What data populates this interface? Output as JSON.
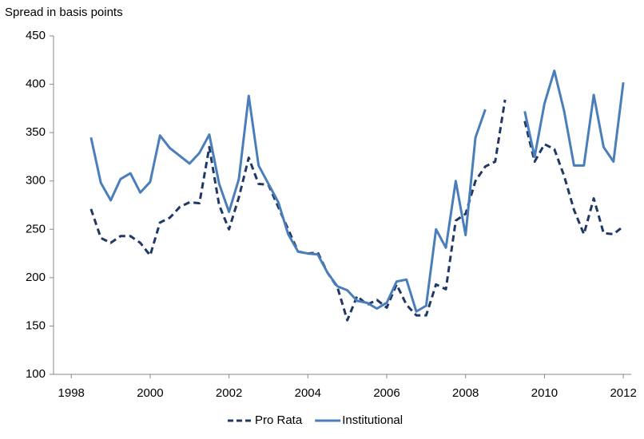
{
  "chart_data": {
    "type": "line",
    "y_axis_label": "Spread in basis points",
    "x": [
      1998.5,
      1998.75,
      1999,
      1999.25,
      1999.5,
      1999.75,
      2000,
      2000.25,
      2000.5,
      2000.75,
      2001,
      2001.25,
      2001.5,
      2001.75,
      2002,
      2002.25,
      2002.5,
      2002.75,
      2003,
      2003.25,
      2003.5,
      2003.75,
      2004,
      2004.25,
      2004.5,
      2004.75,
      2005,
      2005.25,
      2005.5,
      2005.75,
      2006,
      2006.25,
      2006.5,
      2006.75,
      2007,
      2007.25,
      2007.5,
      2007.75,
      2008,
      2008.25,
      2008.5,
      2008.75,
      2009,
      2009.25,
      2009.5,
      2009.75,
      2010,
      2010.25,
      2010.5,
      2010.75,
      2011,
      2011.25,
      2011.5,
      2011.75,
      2012
    ],
    "series": [
      {
        "name": "Pro Rata",
        "color": "#1f3864",
        "dash": true,
        "values": [
          271,
          241,
          236,
          243,
          243,
          236,
          223,
          257,
          262,
          273,
          278,
          277,
          335,
          275,
          250,
          283,
          324,
          297,
          296,
          273,
          250,
          227,
          225,
          226,
          205,
          190,
          156,
          181,
          172,
          177,
          169,
          193,
          172,
          161,
          161,
          193,
          188,
          259,
          266,
          300,
          315,
          320,
          384,
          null,
          362,
          320,
          338,
          333,
          305,
          270,
          245,
          282,
          246,
          245,
          253
        ]
      },
      {
        "name": "Institutional",
        "color": "#4a7ebb",
        "dash": false,
        "values": [
          345,
          298,
          280,
          302,
          308,
          288,
          299,
          347,
          334,
          326,
          318,
          329,
          348,
          297,
          268,
          302,
          388,
          316,
          297,
          278,
          245,
          227,
          225,
          224,
          205,
          191,
          187,
          176,
          174,
          168,
          174,
          196,
          198,
          165,
          171,
          250,
          231,
          300,
          244,
          345,
          374,
          null,
          null,
          null,
          372,
          325,
          380,
          414,
          372,
          316,
          316,
          389,
          335,
          320,
          402
        ]
      }
    ],
    "xlim": [
      1997.55,
      2012.2
    ],
    "xticks": [
      1998,
      2000,
      2002,
      2004,
      2006,
      2008,
      2010,
      2012
    ],
    "ylim": [
      100,
      450
    ],
    "yticks": [
      100,
      150,
      200,
      250,
      300,
      350,
      400,
      450
    ],
    "grid": false,
    "legend": "bottom"
  }
}
